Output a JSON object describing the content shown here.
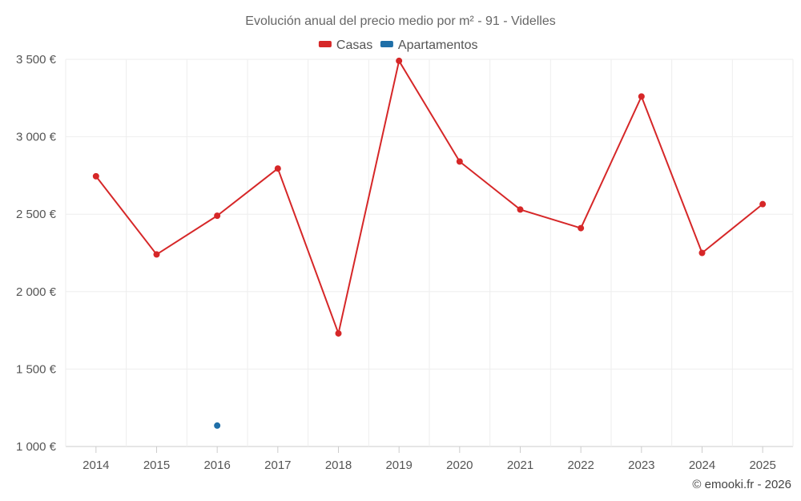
{
  "title": "Evolución anual del precio medio por m² - 91 - Videlles",
  "credit": "© emooki.fr - 2026",
  "chart_data": {
    "type": "line",
    "title": "Evolución anual del precio medio por m² - 91 - Videlles",
    "xlabel": "",
    "ylabel": "",
    "categories": [
      "2014",
      "2015",
      "2016",
      "2017",
      "2018",
      "2019",
      "2020",
      "2021",
      "2022",
      "2023",
      "2024",
      "2025"
    ],
    "ylim": [
      1000,
      3500
    ],
    "yticks": [
      1000,
      1500,
      2000,
      2500,
      3000,
      3500
    ],
    "ytick_labels": [
      "1 000 €",
      "1 500 €",
      "2 000 €",
      "2 500 €",
      "3 000 €",
      "3 500 €"
    ],
    "grid": true,
    "legend_position": "top",
    "series": [
      {
        "name": "Casas",
        "color": "#d62728",
        "values": [
          2745,
          2240,
          2490,
          2795,
          1730,
          3490,
          2840,
          2530,
          2410,
          3260,
          2250,
          2565
        ]
      },
      {
        "name": "Apartamentos",
        "color": "#1f6fa8",
        "values": [
          null,
          null,
          1135,
          null,
          null,
          null,
          null,
          null,
          null,
          null,
          null,
          null
        ]
      }
    ]
  }
}
